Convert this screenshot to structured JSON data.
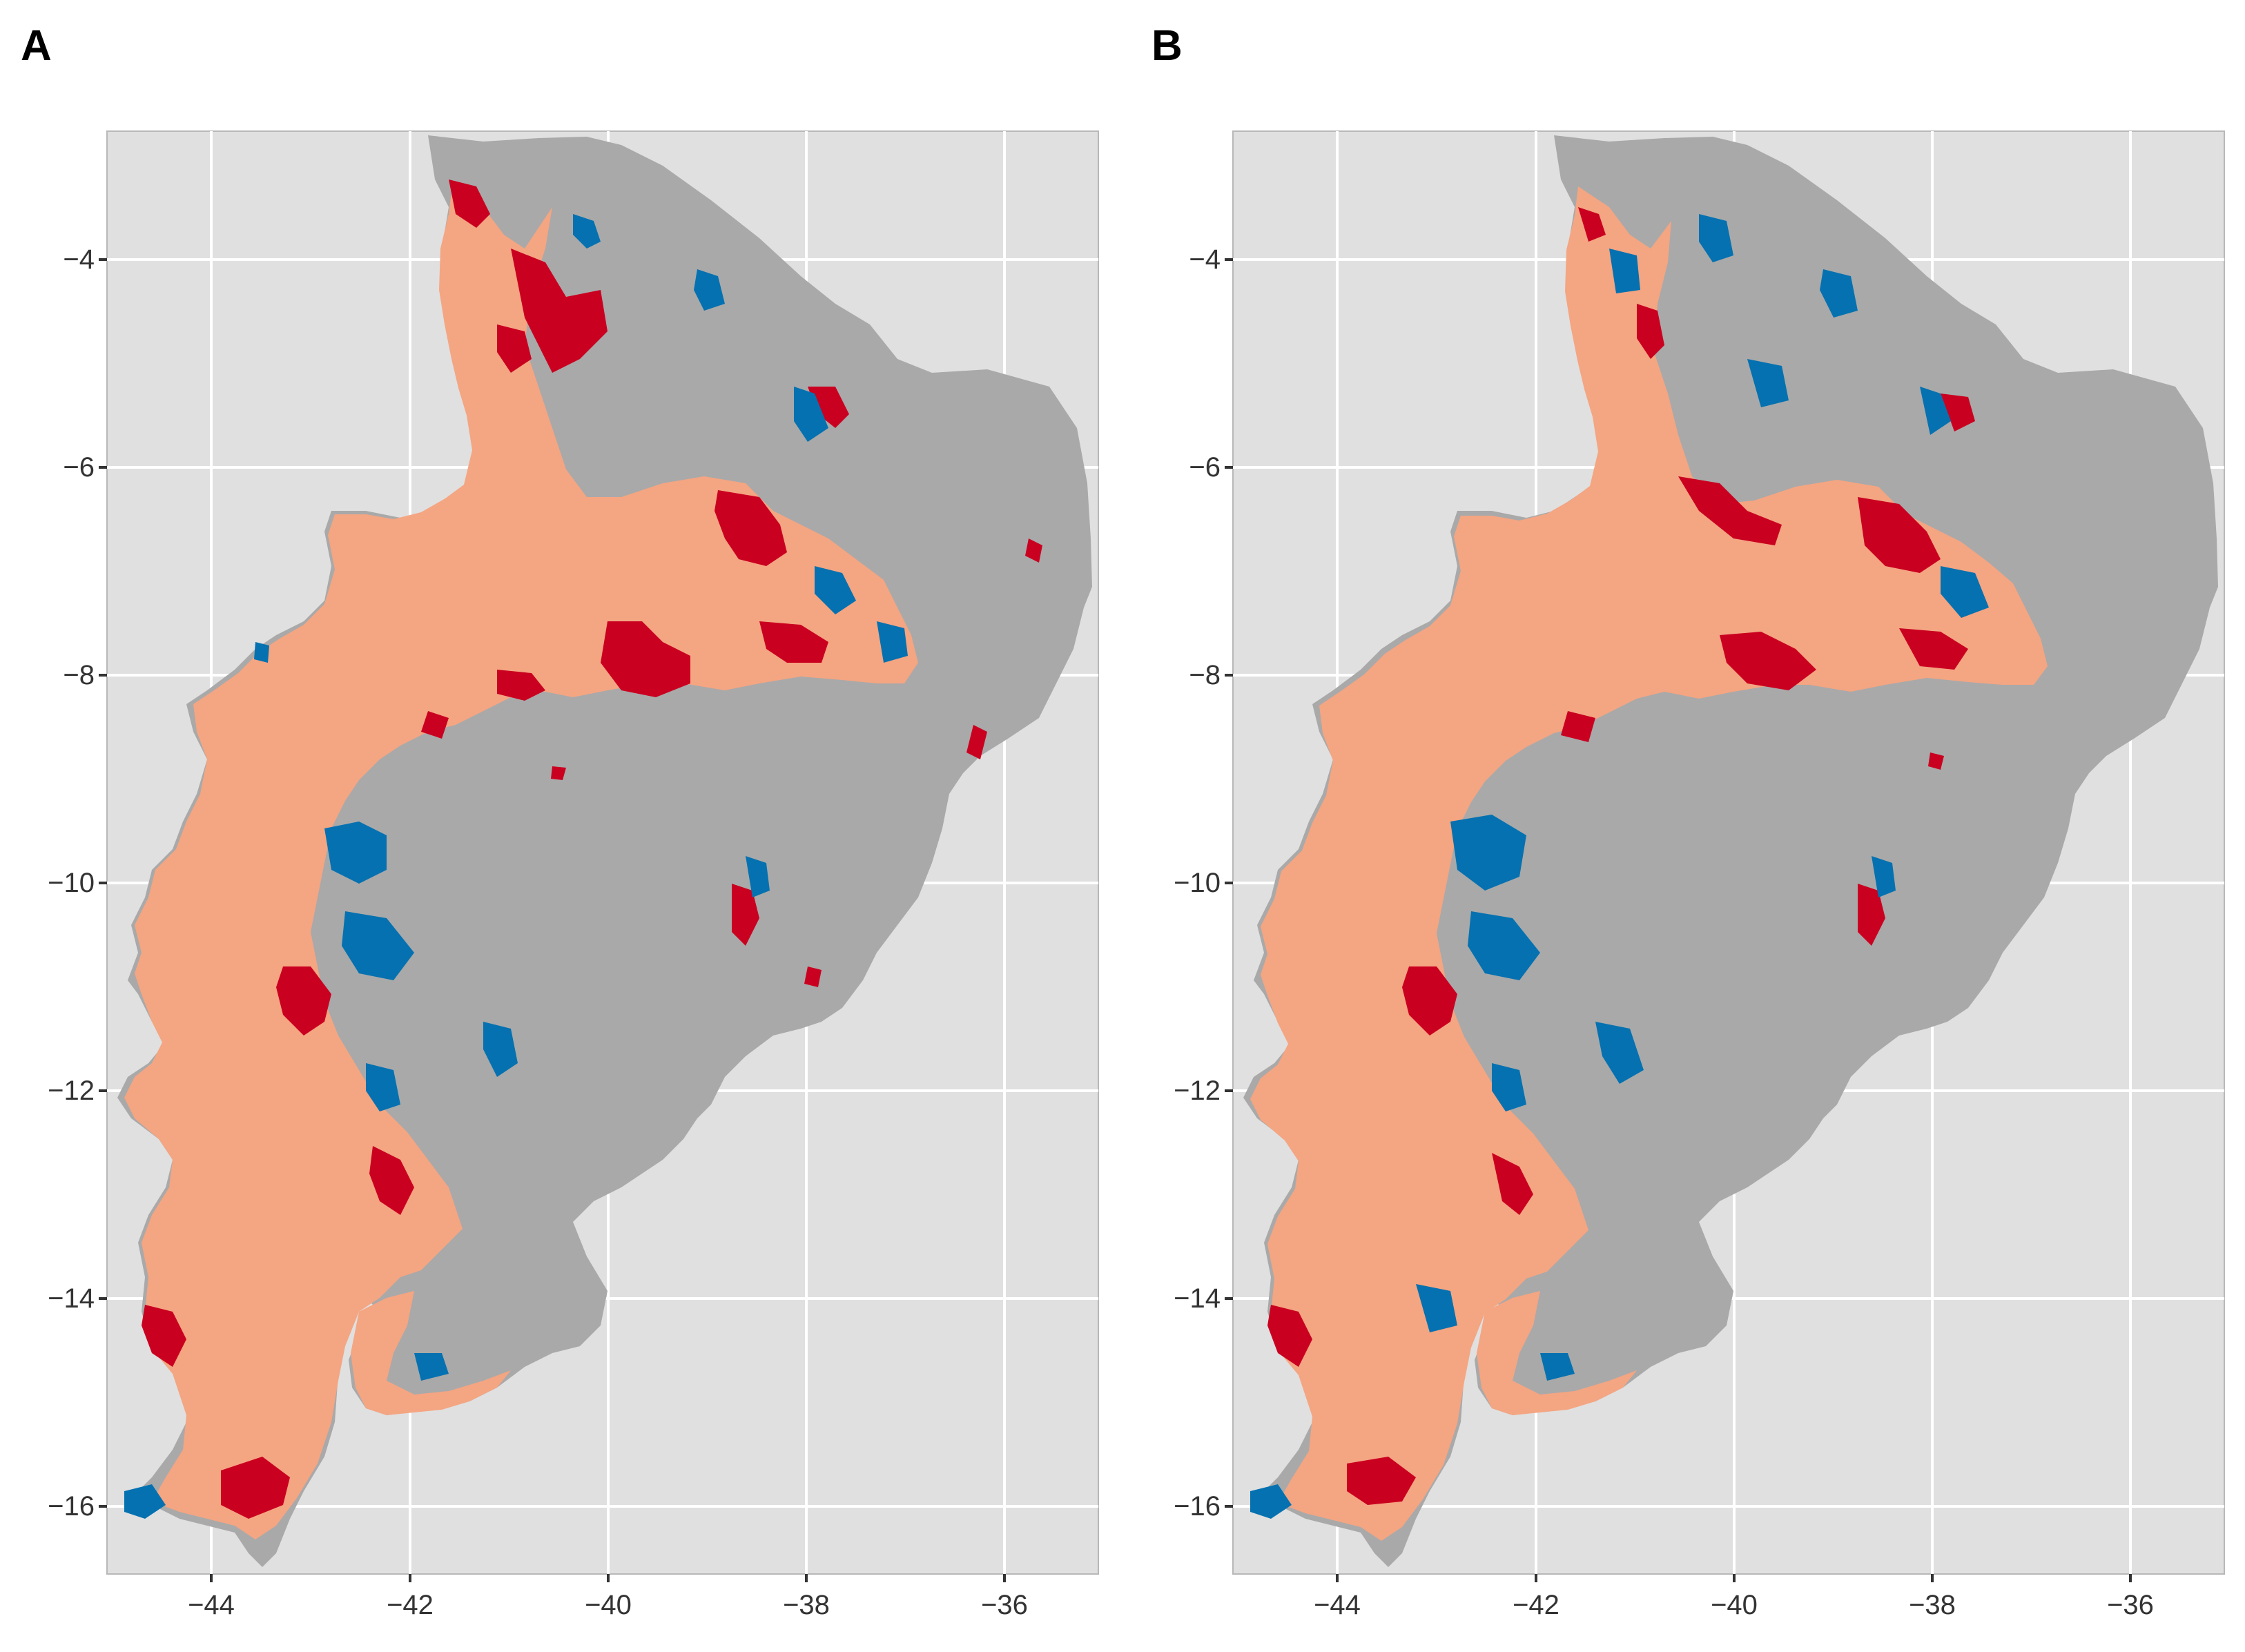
{
  "panels": [
    {
      "label": "A",
      "variant": "A"
    },
    {
      "label": "B",
      "variant": "B"
    }
  ],
  "axes": {
    "x_ticks": [
      "−44",
      "−42",
      "−40",
      "−38",
      "−36"
    ],
    "y_ticks": [
      "−4",
      "−6",
      "−8",
      "−10",
      "−12",
      "−14",
      "−16"
    ],
    "x_values": [
      -44,
      -42,
      -40,
      -38,
      -36
    ],
    "y_values": [
      -4,
      -6,
      -8,
      -10,
      -12,
      -14,
      -16
    ],
    "xlim": [
      -45.05,
      -35.05
    ],
    "ylim": [
      -16.7,
      -2.8
    ]
  },
  "colors": {
    "panel_background": "#e0e0e0",
    "grid": "#ffffff",
    "region_fill": "#a9a9a9",
    "light_salmon": "#f4a582",
    "dark_red": "#ca0020",
    "blue": "#0571b0"
  }
}
